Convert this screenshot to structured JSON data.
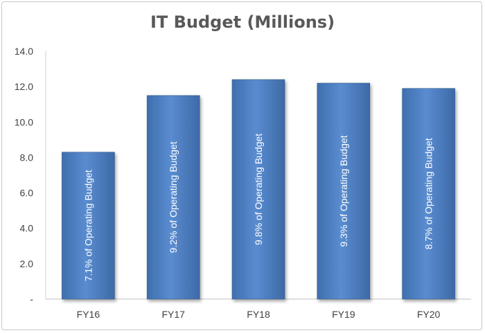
{
  "chart_data": {
    "type": "bar",
    "title": "IT Budget (Millions)",
    "xlabel": "",
    "ylabel": "",
    "categories": [
      "FY16",
      "FY17",
      "FY18",
      "FY19",
      "FY20"
    ],
    "values": [
      8.3,
      11.5,
      12.4,
      12.2,
      11.9
    ],
    "data_labels": [
      "7.1% of Operating Budget",
      "9.2% of Operating Budget",
      "9.8% of Operating Budget",
      "9.3% of Operating Budget",
      "8.7% of Operating Budget"
    ],
    "ylim": [
      0,
      14
    ],
    "y_ticks": [
      0,
      2,
      4,
      6,
      8,
      10,
      12,
      14
    ],
    "y_tick_labels": [
      "-",
      "2.0",
      "4.0",
      "6.0",
      "8.0",
      "10.0",
      "12.0",
      "14.0"
    ],
    "grid": false,
    "legend": "none",
    "bar_color": "#4f81bd"
  }
}
